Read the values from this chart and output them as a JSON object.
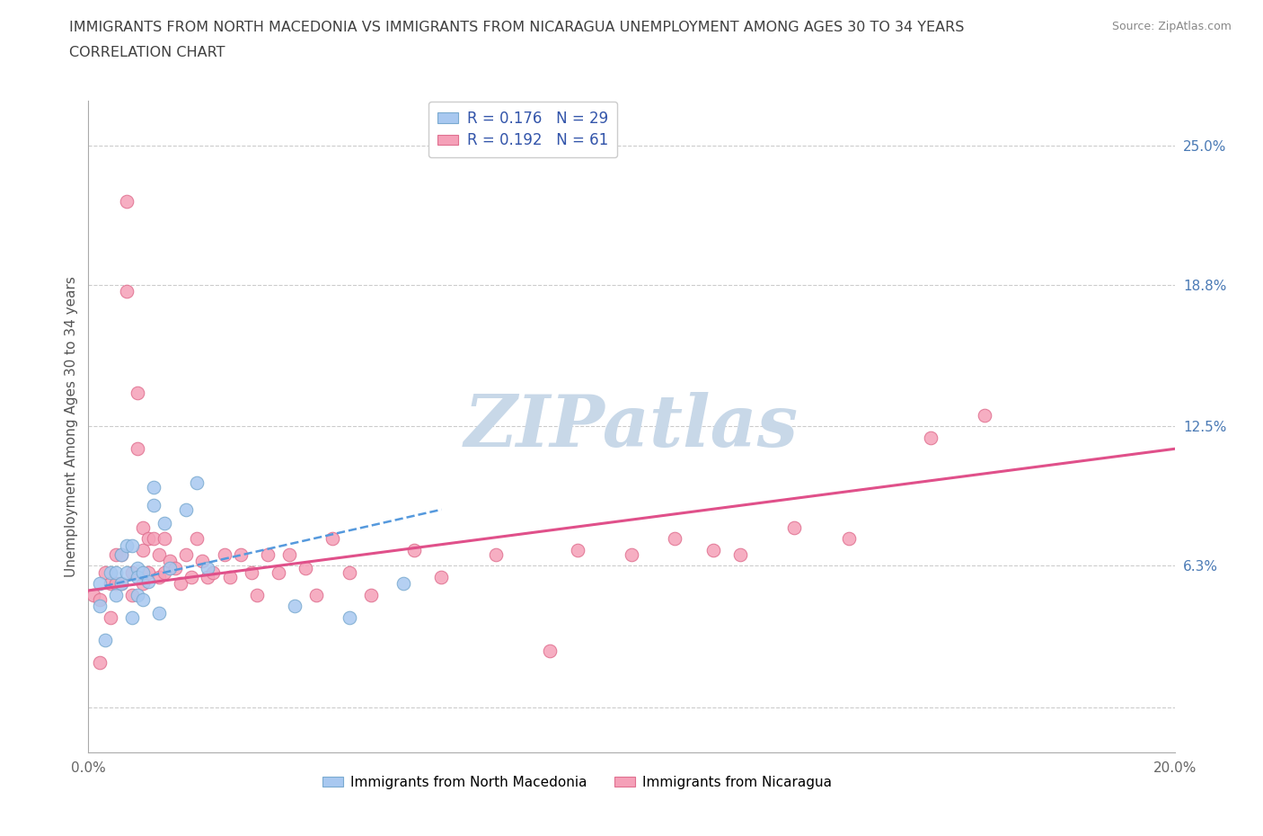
{
  "title_line1": "IMMIGRANTS FROM NORTH MACEDONIA VS IMMIGRANTS FROM NICARAGUA UNEMPLOYMENT AMONG AGES 30 TO 34 YEARS",
  "title_line2": "CORRELATION CHART",
  "source_text": "Source: ZipAtlas.com",
  "ylabel": "Unemployment Among Ages 30 to 34 years",
  "xlim": [
    0.0,
    0.2
  ],
  "ylim": [
    -0.02,
    0.27
  ],
  "xticks": [
    0.0,
    0.05,
    0.1,
    0.15,
    0.2
  ],
  "xtick_labels": [
    "0.0%",
    "",
    "",
    "",
    "20.0%"
  ],
  "right_ytick_vals": [
    0.0,
    0.063,
    0.125,
    0.188,
    0.25
  ],
  "right_ytick_labels": [
    "",
    "6.3%",
    "12.5%",
    "18.8%",
    "25.0%"
  ],
  "R_blue": 0.176,
  "N_blue": 29,
  "R_pink": 0.192,
  "N_pink": 61,
  "legend_label_blue": "Immigrants from North Macedonia",
  "legend_label_pink": "Immigrants from Nicaragua",
  "blue_color": "#a8c8f0",
  "blue_edge": "#7aaad0",
  "pink_color": "#f5a0b8",
  "pink_edge": "#e07090",
  "blue_line_color": "#5599dd",
  "pink_line_color": "#e0508a",
  "watermark": "ZIPatlas",
  "watermark_color": "#c8d8e8",
  "grid_color": "#cccccc",
  "title_color": "#404040",
  "blue_scatter_x": [
    0.002,
    0.002,
    0.003,
    0.004,
    0.005,
    0.005,
    0.006,
    0.006,
    0.007,
    0.007,
    0.008,
    0.008,
    0.009,
    0.009,
    0.009,
    0.01,
    0.01,
    0.011,
    0.012,
    0.012,
    0.013,
    0.014,
    0.015,
    0.018,
    0.02,
    0.022,
    0.038,
    0.048,
    0.058
  ],
  "blue_scatter_y": [
    0.055,
    0.045,
    0.03,
    0.06,
    0.06,
    0.05,
    0.068,
    0.055,
    0.072,
    0.06,
    0.072,
    0.04,
    0.062,
    0.058,
    0.05,
    0.06,
    0.048,
    0.056,
    0.098,
    0.09,
    0.042,
    0.082,
    0.062,
    0.088,
    0.1,
    0.062,
    0.045,
    0.04,
    0.055
  ],
  "pink_scatter_x": [
    0.001,
    0.002,
    0.002,
    0.003,
    0.004,
    0.004,
    0.005,
    0.005,
    0.006,
    0.006,
    0.007,
    0.007,
    0.008,
    0.008,
    0.009,
    0.009,
    0.01,
    0.01,
    0.01,
    0.011,
    0.011,
    0.012,
    0.013,
    0.013,
    0.014,
    0.014,
    0.015,
    0.016,
    0.017,
    0.018,
    0.019,
    0.02,
    0.021,
    0.022,
    0.023,
    0.025,
    0.026,
    0.028,
    0.03,
    0.031,
    0.033,
    0.035,
    0.037,
    0.04,
    0.042,
    0.045,
    0.048,
    0.052,
    0.06,
    0.065,
    0.075,
    0.085,
    0.09,
    0.1,
    0.108,
    0.115,
    0.12,
    0.13,
    0.14,
    0.155,
    0.165
  ],
  "pink_scatter_y": [
    0.05,
    0.048,
    0.02,
    0.06,
    0.055,
    0.04,
    0.068,
    0.055,
    0.068,
    0.055,
    0.225,
    0.185,
    0.06,
    0.05,
    0.14,
    0.115,
    0.08,
    0.07,
    0.055,
    0.075,
    0.06,
    0.075,
    0.068,
    0.058,
    0.075,
    0.06,
    0.065,
    0.062,
    0.055,
    0.068,
    0.058,
    0.075,
    0.065,
    0.058,
    0.06,
    0.068,
    0.058,
    0.068,
    0.06,
    0.05,
    0.068,
    0.06,
    0.068,
    0.062,
    0.05,
    0.075,
    0.06,
    0.05,
    0.07,
    0.058,
    0.068,
    0.025,
    0.07,
    0.068,
    0.075,
    0.07,
    0.068,
    0.08,
    0.075,
    0.12,
    0.13
  ],
  "blue_line_x": [
    0.003,
    0.065
  ],
  "blue_line_y": [
    0.054,
    0.088
  ],
  "pink_line_x": [
    0.0,
    0.2
  ],
  "pink_line_y": [
    0.052,
    0.115
  ]
}
